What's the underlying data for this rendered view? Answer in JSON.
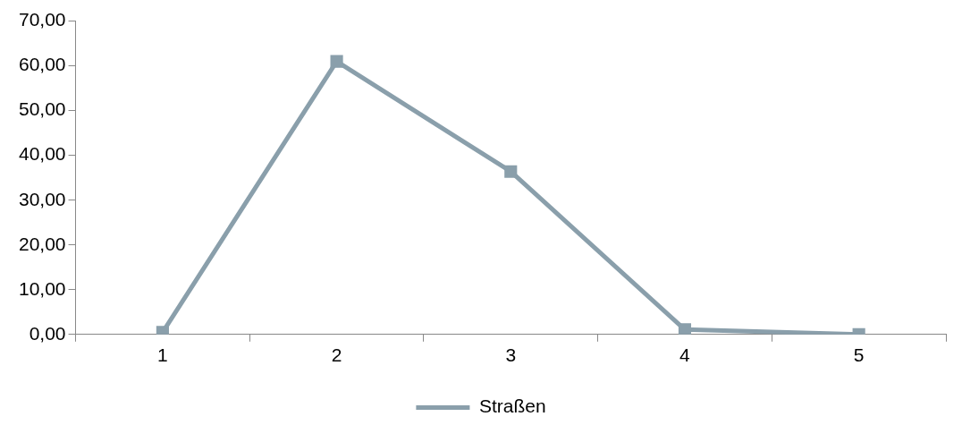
{
  "chart_data": {
    "type": "line",
    "categories": [
      "1",
      "2",
      "3",
      "4",
      "5"
    ],
    "series": [
      {
        "name": "Straßen",
        "color": "#8a9fab",
        "values": [
          0.5,
          61.0,
          36.4,
          1.1,
          0
        ]
      }
    ],
    "ylim": [
      0,
      70
    ],
    "yticks": [
      {
        "value": 0,
        "label": "0,00"
      },
      {
        "value": 10,
        "label": "10,00"
      },
      {
        "value": 20,
        "label": "20,00"
      },
      {
        "value": 30,
        "label": "30,00"
      },
      {
        "value": 40,
        "label": "40,00"
      },
      {
        "value": 50,
        "label": "50,00"
      },
      {
        "value": 60,
        "label": "60,00"
      },
      {
        "value": 70,
        "label": "70,00"
      }
    ],
    "grid": false,
    "legend": "bottom",
    "marker": "square",
    "line_style": "solid"
  }
}
